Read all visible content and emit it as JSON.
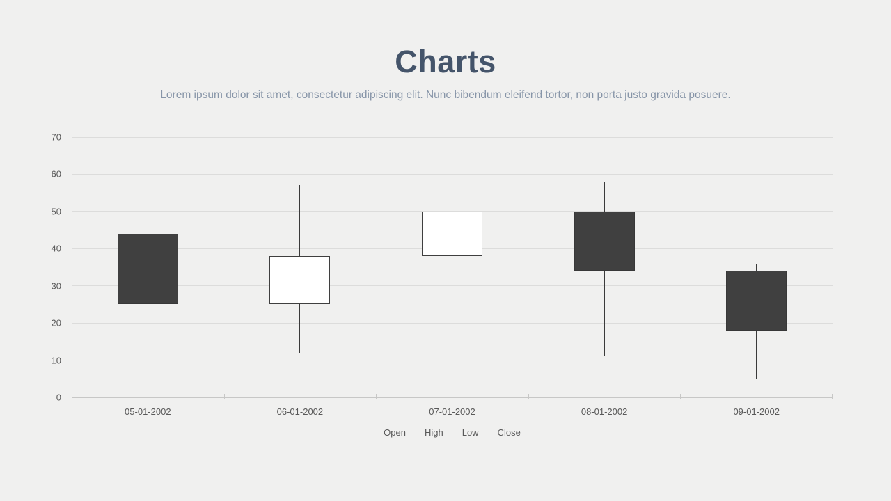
{
  "header": {
    "title": "Charts",
    "subtitle": "Lorem ipsum dolor sit amet, consectetur adipiscing elit. Nunc bibendum eleifend tortor, non porta justo gravida posuere."
  },
  "colors": {
    "background": "#f0f0ef",
    "title": "#44546a",
    "subtitle": "#8795a8",
    "axis_text": "#595959",
    "gridline": "#dcdcdb",
    "axis_line": "#c7c7c6",
    "candle_up_fill": "#ffffff",
    "candle_down_fill": "#404040",
    "candle_border": "#3f3f3f",
    "wick": "#3a3a3a"
  },
  "chart_data": {
    "type": "candlestick",
    "title": "Charts",
    "categories": [
      "05-01-2002",
      "06-01-2002",
      "07-01-2002",
      "08-01-2002",
      "09-01-2002"
    ],
    "series_labels": [
      "Open",
      "High",
      "Low",
      "Close"
    ],
    "points": [
      {
        "date": "05-01-2002",
        "open": 44,
        "high": 55,
        "low": 11,
        "close": 25,
        "direction": "down"
      },
      {
        "date": "06-01-2002",
        "open": 25,
        "high": 57,
        "low": 12,
        "close": 38,
        "direction": "up"
      },
      {
        "date": "07-01-2002",
        "open": 38,
        "high": 57,
        "low": 13,
        "close": 50,
        "direction": "up"
      },
      {
        "date": "08-01-2002",
        "open": 50,
        "high": 58,
        "low": 11,
        "close": 34,
        "direction": "down"
      },
      {
        "date": "09-01-2002",
        "open": 34,
        "high": 36,
        "low": 5,
        "close": 18,
        "direction": "down"
      }
    ],
    "ylim": [
      0,
      70
    ],
    "ytick_step": 10,
    "yticks": [
      0,
      10,
      20,
      30,
      40,
      50,
      60,
      70
    ],
    "grid": true,
    "legend_position": "bottom",
    "up_style": "hollow-white",
    "down_style": "filled-dark"
  }
}
